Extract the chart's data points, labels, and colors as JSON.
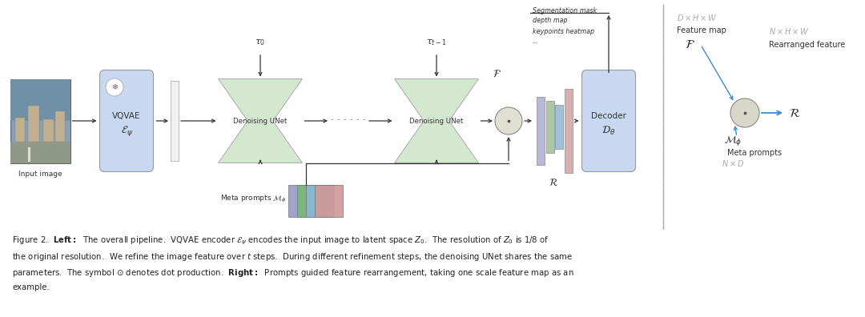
{
  "bg_color": "#ffffff",
  "fig_width": 10.8,
  "fig_height": 3.96,
  "blue_light": "#c8d8f0",
  "green_light": "#d4e8d0",
  "dot_color": "#d8d8c8",
  "img_colors": {
    "sky": "#7090a8",
    "ground": "#889878",
    "building1": "#c8b898",
    "building2": "#b8a888"
  },
  "strip_colors": [
    "#b8b8d8",
    "#a8c8a8",
    "#a0c0d8",
    "#d8b0b0"
  ],
  "meta_colors": [
    "#9898c8",
    "#78b878",
    "#88b8d8",
    "#d09898"
  ],
  "seg_labels": [
    "Segmentation mask",
    "depth map",
    "keypoints heatmap",
    "..."
  ],
  "caption": "Figure 2.  \\textbf{Left:} The overall pipeline.  VQVAE encoder $\\mathcal{E}_{\\psi}$ encodes the input image to latent space $Z_0$.  The resolution of $Z_0$ is 1/8 of the original resolution.  We refine the image feature over $t$ steps.  During different refinement steps, the denoising UNet shares the same parameters.  The symbol $\\odot$ denotes dot production.  \\textbf{Right:} Prompts guided feature rearrangement, taking one scale feature map as an example."
}
